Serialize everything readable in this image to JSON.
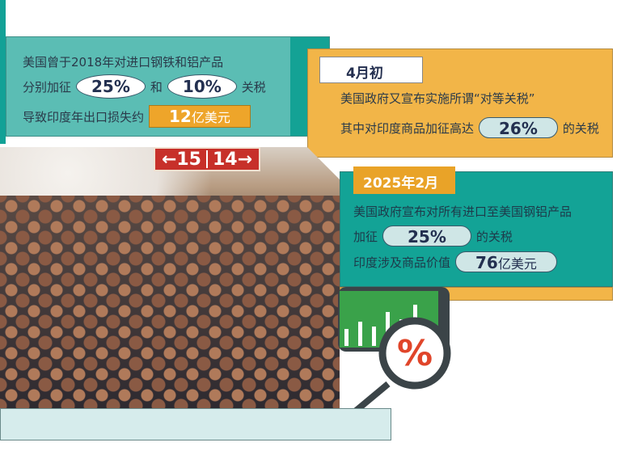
{
  "block1": {
    "line1": "美国曾于2018年对进口钢铁和铝产品",
    "line2_prefix": "分别加征",
    "rate_steel": "25%",
    "line2_mid": "和",
    "rate_aluminum": "10%",
    "line2_suffix": "关税",
    "line3_prefix": "导致印度年出口损失约",
    "loss_number": "12",
    "loss_unit": "亿美元"
  },
  "block2": {
    "tag": "4月初",
    "line1": "美国政府又宣布实施所谓“对等关税”",
    "line2_prefix": "其中对印度商品加征高达",
    "rate": "26%",
    "line2_suffix": "的关税"
  },
  "block3": {
    "tag": "2025年2月",
    "line1": "美国政府宣布对所有进口至美国钢铝产品",
    "line2_prefix": "加征",
    "rate": "25%",
    "line2_suffix": "的关税",
    "line3_prefix": "印度涉及商品价值",
    "value_number": "76",
    "value_unit": "亿美元"
  },
  "photo": {
    "sign_left": "←15",
    "sign_right": "14→"
  },
  "icon": {
    "name": "magnifier-percent-chart-icon",
    "symbol": "%",
    "bars": [
      0.35,
      0.5,
      0.4,
      0.7,
      0.55,
      0.85
    ],
    "colors": {
      "screen": "#3aa24a",
      "frame": "#3b4448",
      "percent": "#e0452a"
    }
  },
  "colors": {
    "teal": "#13a396",
    "light_teal": "#5bbdb4",
    "orange": "#f2b548"
  }
}
